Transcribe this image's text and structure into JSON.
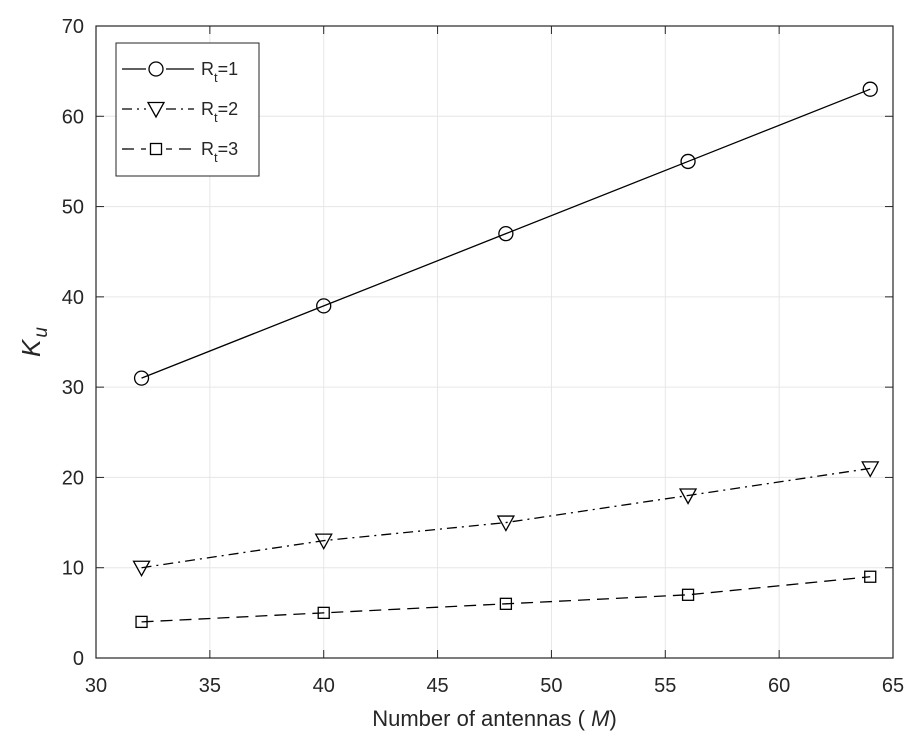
{
  "chart_data": {
    "type": "line",
    "title": "",
    "xlabel": "Number of antennas ( M)",
    "xlabel_parts": {
      "prefix": "Number of antennas ( ",
      "symbol": "M",
      "suffix": ")"
    },
    "ylabel": "K_u",
    "ylabel_parts": {
      "symbol": "K",
      "subscript": "u"
    },
    "xlim": [
      30,
      65
    ],
    "ylim": [
      0,
      70
    ],
    "xticks": [
      30,
      35,
      40,
      45,
      50,
      55,
      60,
      65
    ],
    "yticks": [
      0,
      10,
      20,
      30,
      40,
      50,
      60,
      70
    ],
    "grid": true,
    "legend_position": "top-left",
    "x": [
      32,
      40,
      48,
      56,
      64
    ],
    "series": [
      {
        "name": "R_t=1",
        "label_main": "R",
        "label_sub": "t",
        "label_tail": "=1",
        "values": [
          31,
          39,
          47,
          55,
          63
        ],
        "marker": "circle",
        "line_style": "solid",
        "color": "#000000"
      },
      {
        "name": "R_t=2",
        "label_main": "R",
        "label_sub": "t",
        "label_tail": "=2",
        "values": [
          10,
          13,
          15,
          18,
          21
        ],
        "marker": "triangle-down",
        "line_style": "dash-dot",
        "color": "#000000"
      },
      {
        "name": "R_t=3",
        "label_main": "R",
        "label_sub": "t",
        "label_tail": "=3",
        "values": [
          4,
          5,
          6,
          7,
          9
        ],
        "marker": "square",
        "line_style": "dashed",
        "color": "#000000"
      }
    ]
  }
}
